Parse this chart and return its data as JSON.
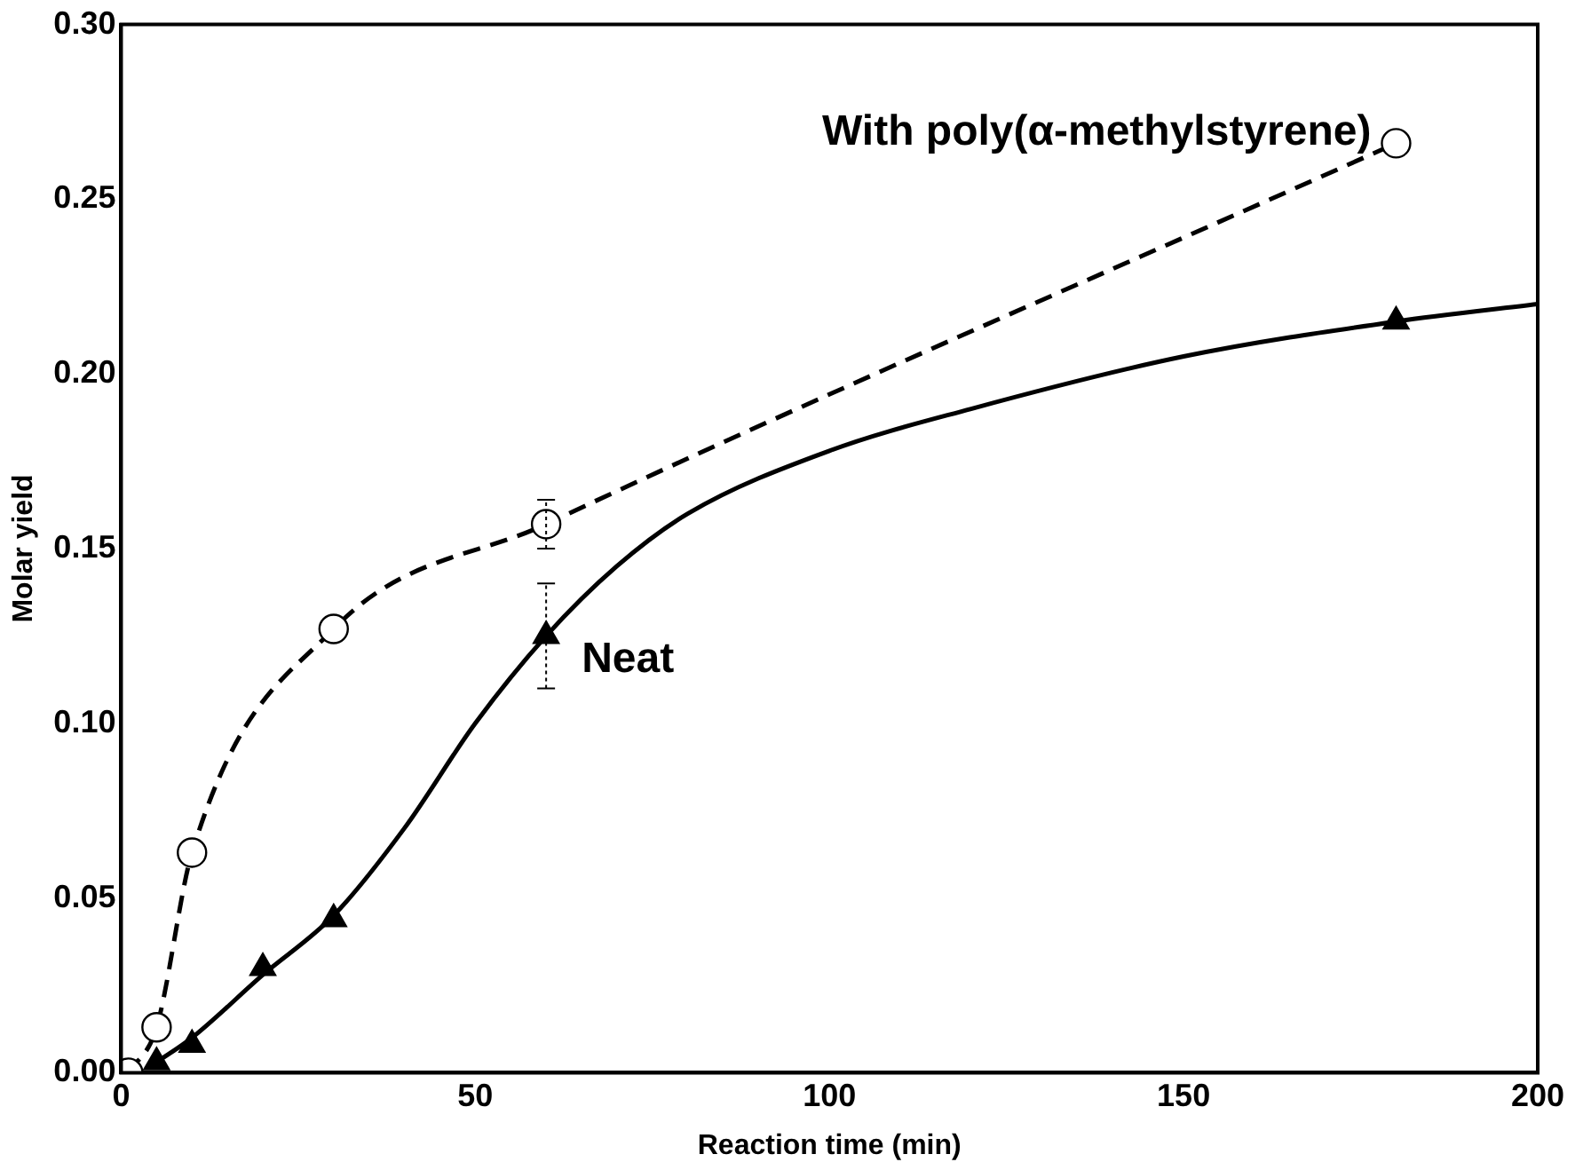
{
  "chart_data": {
    "type": "scatter",
    "xlabel": "Reaction time (min)",
    "ylabel": "Molar yield",
    "xlim": [
      0,
      200
    ],
    "xticks": [
      0,
      50,
      100,
      150,
      200
    ],
    "ylim": [
      0,
      0.3
    ],
    "yticks": [
      {
        "value": 0,
        "label": "0.00"
      },
      {
        "value": 0.05,
        "label": "0.05"
      },
      {
        "value": 0.1,
        "label": "0.10"
      },
      {
        "value": 0.15,
        "label": "0.15"
      },
      {
        "value": 0.2,
        "label": "0.20"
      },
      {
        "value": 0.25,
        "label": "0.25"
      },
      {
        "value": 0.3,
        "label": "0.30"
      }
    ],
    "grid": false,
    "legend": false,
    "series": [
      {
        "type": "line",
        "color": "#000000",
        "line_style": "dashed",
        "marker": "circle",
        "x": [
          1,
          5,
          10,
          30,
          60,
          180
        ],
        "values": [
          0,
          0.013,
          0.063,
          0.127,
          0.157,
          0.266
        ],
        "errors": [
          null,
          null,
          null,
          null,
          0.007,
          null
        ]
      },
      {
        "type": "line",
        "color": "#000000",
        "line_style": "solid",
        "marker": "none",
        "x": [
          5,
          10,
          20,
          30,
          40,
          50,
          60,
          70,
          80,
          100,
          120,
          150,
          180,
          200
        ],
        "values": [
          0.003,
          0.01,
          0.028,
          0.045,
          0.07,
          0.1,
          0.125,
          0.145,
          0.16,
          0.178,
          0.19,
          0.205,
          0.215,
          0.22
        ]
      },
      {
        "color": "#000000",
        "marker": "triangle",
        "x": [
          5,
          10,
          20,
          30,
          60,
          180
        ],
        "values": [
          0.003,
          0.008,
          0.03,
          0.044,
          0.125,
          0.215
        ],
        "errors": [
          null,
          null,
          null,
          null,
          [
            0.11,
            0.14
          ],
          null
        ]
      }
    ],
    "annotations": [
      {
        "text": "With poly(α-methylstyrene)",
        "x": 180,
        "y": 0.266
      },
      {
        "text": "Neat",
        "x": 60,
        "y": 0.118
      }
    ]
  }
}
